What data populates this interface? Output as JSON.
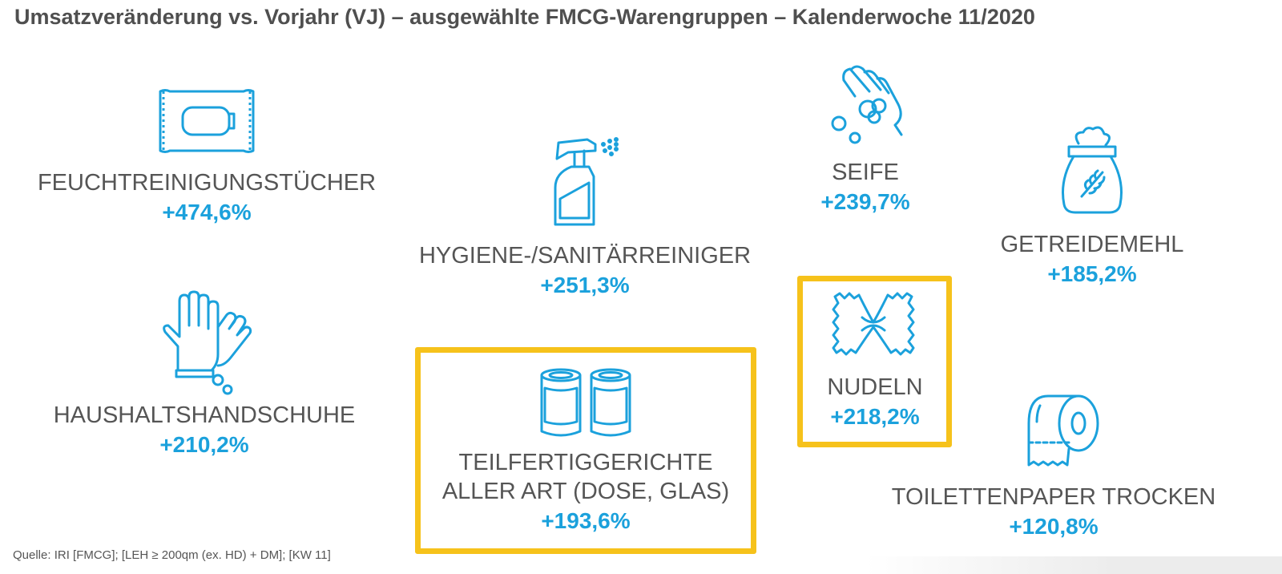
{
  "title": "Umsatzveränderung vs. Vorjahr (VJ) – ausgewählte FMCG-Warengruppen – Kalenderwoche 11/2020",
  "accent_color": "#1ba1dc",
  "highlight_color": "#f6c21b",
  "items": [
    {
      "label": "FEUCHTREINIGUNGSTÜCHER",
      "value": "+474,6%",
      "icon": "wet-wipes-icon"
    },
    {
      "label": "HYGIENE-/SANITÄRREINIGER",
      "value": "+251,3%",
      "icon": "spray-bottle-icon"
    },
    {
      "label": "SEIFE",
      "value": "+239,7%",
      "icon": "soap-hand-icon"
    },
    {
      "label": "GETREIDEMEHL",
      "value": "+185,2%",
      "icon": "flour-sack-icon"
    },
    {
      "label": "HAUSHALTSHANDSCHUHE",
      "value": "+210,2%",
      "icon": "gloves-icon"
    },
    {
      "label_line1": "TEILFERTIGGERICHTE",
      "label_line2": "ALLER ART (DOSE, GLAS)",
      "value": "+193,6%",
      "icon": "cans-icon",
      "highlighted": true
    },
    {
      "label": "NUDELN",
      "value": "+218,2%",
      "icon": "pasta-icon",
      "highlighted": true
    },
    {
      "label": "TOILETTENPAPER TROCKEN",
      "value": "+120,8%",
      "icon": "toilet-paper-icon"
    }
  ],
  "source": "Quelle: IRI [FMCG]; [LEH ≥ 200qm (ex. HD) + DM]; [KW 11]"
}
